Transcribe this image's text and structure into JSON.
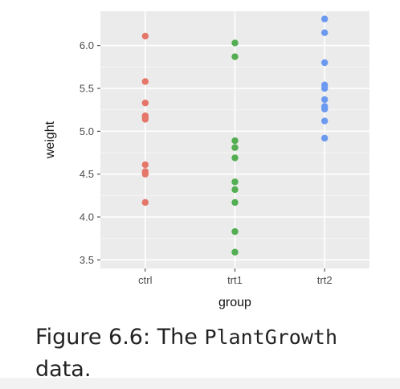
{
  "chart_data": {
    "type": "scatter",
    "xlabel": "group",
    "ylabel": "weight",
    "categories": [
      "ctrl",
      "trt1",
      "trt2"
    ],
    "y_ticks": [
      "3.5",
      "4.0",
      "4.5",
      "5.0",
      "5.5",
      "6.0"
    ],
    "ylim": [
      3.4,
      6.4
    ],
    "grid": true,
    "series": [
      {
        "category": "ctrl",
        "color": "#E4766A",
        "values": [
          4.17,
          5.58,
          5.18,
          6.11,
          4.5,
          4.61,
          5.17,
          4.53,
          5.33,
          5.14
        ]
      },
      {
        "category": "trt1",
        "color": "#53AE52",
        "values": [
          4.81,
          4.17,
          4.41,
          3.59,
          5.87,
          3.83,
          6.03,
          4.89,
          4.32,
          4.69
        ]
      },
      {
        "category": "trt2",
        "color": "#6C9AF0",
        "values": [
          6.31,
          5.12,
          5.54,
          5.5,
          5.37,
          5.29,
          4.92,
          6.15,
          5.8,
          5.26
        ]
      }
    ]
  },
  "caption": {
    "prefix": "Figure 6.6: The ",
    "code": "PlantGrowth",
    "suffix": " data."
  }
}
